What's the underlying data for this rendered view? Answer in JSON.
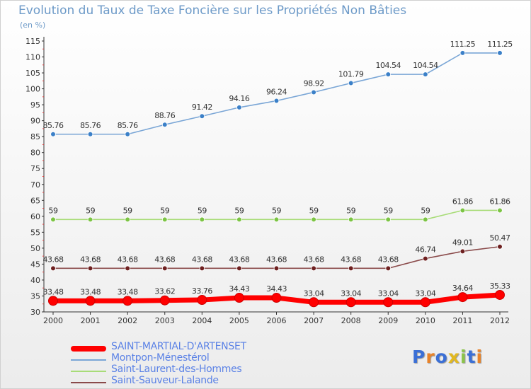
{
  "title": "Evolution du Taux de Taxe Foncière sur les Propriétés Non Bâties",
  "subtitle": "(en %)",
  "logo": {
    "text": "Proxiti",
    "colors": [
      "#3b6fd6",
      "#e8832a",
      "#3b6fd6",
      "#e2b820",
      "#8bc34a",
      "#3b6fd6",
      "#e8832a"
    ]
  },
  "chart_data": {
    "type": "line",
    "title": "Evolution du Taux de Taxe Foncière sur les Propriétés Non Bâties",
    "ylabel": "(en %)",
    "x": [
      "2000",
      "2001",
      "2002",
      "2003",
      "2004",
      "2005",
      "2006",
      "2007",
      "2008",
      "2009",
      "2010",
      "2011",
      "2012"
    ],
    "ylim": [
      30,
      115
    ],
    "yticks": [
      30,
      35,
      40,
      45,
      50,
      55,
      60,
      65,
      70,
      75,
      80,
      85,
      90,
      95,
      100,
      105,
      110,
      115
    ],
    "grid": false,
    "legend": "bottom-left",
    "series": [
      {
        "name": "SAINT-MARTIAL-D'ARTENSET",
        "color": "#ff0000",
        "values": [
          33.48,
          33.48,
          33.48,
          33.62,
          33.76,
          34.43,
          34.43,
          33.04,
          33.04,
          33.04,
          33.04,
          34.64,
          35.33
        ],
        "labels": [
          "33.48",
          "33.48",
          "33.48",
          "33.62",
          "33.76",
          "34.43",
          "34.43",
          "33.04",
          "33.04",
          "33.04",
          "33.04",
          "34.64",
          "35.33"
        ]
      },
      {
        "name": "Montpon-Ménestérol",
        "color": "#7aa6d6",
        "marker": "#3b80c8",
        "values": [
          85.76,
          85.76,
          85.76,
          88.76,
          91.42,
          94.16,
          96.24,
          98.92,
          101.79,
          104.54,
          104.54,
          111.25,
          111.25
        ],
        "labels": [
          "85.76",
          "85.76",
          "85.76",
          "88.76",
          "91.42",
          "94.16",
          "96.24",
          "98.92",
          "101.79",
          "104.54",
          "104.54",
          "111.25",
          "111.25"
        ]
      },
      {
        "name": "Saint-Laurent-des-Hommes",
        "color": "#a8dc78",
        "marker": "#7cc444",
        "values": [
          59,
          59,
          59,
          59,
          59,
          59,
          59,
          59,
          59,
          59,
          59,
          61.86,
          61.86
        ],
        "labels": [
          "59",
          "59",
          "59",
          "59",
          "59",
          "59",
          "59",
          "59",
          "59",
          "59",
          "59",
          "61.86",
          "61.86"
        ]
      },
      {
        "name": "Saint-Sauveur-Lalande",
        "color": "#8a4a4a",
        "marker": "#6e2020",
        "values": [
          43.68,
          43.68,
          43.68,
          43.68,
          43.68,
          43.68,
          43.68,
          43.68,
          43.68,
          43.68,
          46.74,
          49.01,
          50.47
        ],
        "labels": [
          "43.68",
          "43.68",
          "43.68",
          "43.68",
          "43.68",
          "43.68",
          "43.68",
          "43.68",
          "43.68",
          "43.68",
          "46.74",
          "49.01",
          "50.47"
        ]
      }
    ]
  }
}
